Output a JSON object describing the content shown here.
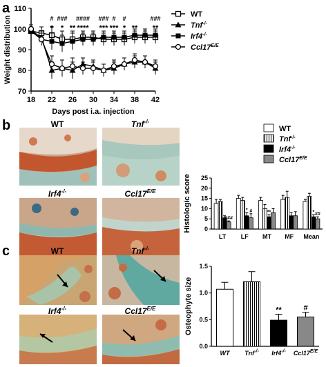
{
  "panels": {
    "a": "a",
    "b": "b",
    "c": "c"
  },
  "micrographs_b": [
    {
      "label": "WT",
      "sup": ""
    },
    {
      "label": "Tnf",
      "sup": "-/-"
    },
    {
      "label": "Irf4",
      "sup": "-/-"
    },
    {
      "label": "Ccl17",
      "sup": "E/E"
    }
  ],
  "micrographs_c": [
    {
      "label": "WT",
      "sup": ""
    },
    {
      "label": "Tnf",
      "sup": "-/-"
    },
    {
      "label": "Irf4",
      "sup": "-/-"
    },
    {
      "label": "Ccl17",
      "sup": "E/E"
    }
  ],
  "colors": {
    "white": "#ffffff",
    "black": "#000000",
    "grey": "#888888"
  },
  "chart_data": [
    {
      "type": "line",
      "id": "a",
      "xlabel": "Days post i.a. injection",
      "ylabel": "Weight distribution",
      "xlim": [
        18,
        42
      ],
      "ylim": [
        70,
        110
      ],
      "xticks": [
        "18",
        "22",
        "26",
        "30",
        "34",
        "38",
        "42"
      ],
      "yticks": [
        "70",
        "80",
        "90",
        "100",
        "110"
      ],
      "x": [
        18,
        20,
        22,
        24,
        26,
        28,
        30,
        32,
        34,
        36,
        38,
        40,
        42
      ],
      "series": [
        {
          "name": "WT",
          "marker": "open-square",
          "values": [
            99,
            98,
            97,
            95,
            95,
            96,
            96,
            95,
            95,
            95,
            96,
            96,
            96
          ]
        },
        {
          "name": "Tnf",
          "sup": "-/-",
          "marker": "filled-triangle",
          "values": [
            99,
            96,
            80,
            81,
            80,
            83,
            82,
            80,
            81,
            83,
            84,
            84,
            81
          ]
        },
        {
          "name": "Irf4",
          "sup": "-/-",
          "marker": "filled-square",
          "values": [
            99,
            95,
            94,
            93,
            94,
            95,
            95,
            96,
            96,
            96,
            97,
            97,
            97
          ]
        },
        {
          "name": "Ccl17",
          "sup": "E/E",
          "marker": "open-circle",
          "values": [
            100,
            95,
            83,
            81,
            82,
            81,
            81,
            80,
            82,
            83,
            85,
            84,
            82
          ]
        }
      ],
      "errors": [
        2,
        3,
        4,
        4,
        4,
        3,
        3,
        3,
        3,
        3,
        3,
        3,
        3
      ],
      "annotations_top": [
        {
          "x": 22,
          "text": "#"
        },
        {
          "x": 24,
          "text": "###"
        },
        {
          "x": 28,
          "text": "####"
        },
        {
          "x": 32,
          "text": "###"
        },
        {
          "x": 34,
          "text": "#"
        },
        {
          "x": 36,
          "text": "#"
        },
        {
          "x": 42,
          "text": "###"
        }
      ],
      "annotations_bottom": [
        {
          "x": 22,
          "text": "*"
        },
        {
          "x": 24,
          "text": "*"
        },
        {
          "x": 26,
          "text": "**"
        },
        {
          "x": 28,
          "text": "****"
        },
        {
          "x": 32,
          "text": "***"
        },
        {
          "x": 34,
          "text": "***"
        },
        {
          "x": 36,
          "text": "*"
        },
        {
          "x": 38,
          "text": "**"
        },
        {
          "x": 42,
          "text": "**"
        }
      ]
    },
    {
      "type": "bar",
      "id": "b",
      "ylabel": "Histologic score",
      "ylim": [
        0,
        25
      ],
      "yticks": [
        "0",
        "5",
        "10",
        "15",
        "20",
        "25"
      ],
      "categories": [
        "LT",
        "LF",
        "MT",
        "MF",
        "Mean"
      ],
      "series": [
        {
          "name": "WT",
          "style": "white",
          "values": [
            12.5,
            15,
            14,
            14.5,
            13.5
          ],
          "errors": [
            2,
            1.5,
            1.5,
            2,
            1
          ]
        },
        {
          "name": "Tnf",
          "sup": "-/-",
          "style": "stripes",
          "values": [
            13.5,
            14,
            10,
            15.5,
            16
          ],
          "errors": [
            1,
            1.5,
            2,
            3,
            1.5
          ]
        },
        {
          "name": "Irf4",
          "sup": "-/-",
          "style": "black",
          "values": [
            5.5,
            6.5,
            6,
            6.5,
            6
          ],
          "errors": [
            1,
            1.5,
            1,
            1.5,
            1
          ]
        },
        {
          "name": "Ccl17",
          "sup": "E/E",
          "style": "grey",
          "values": [
            3.5,
            5.5,
            8,
            6.5,
            5
          ],
          "errors": [
            0.5,
            2,
            2,
            2,
            1
          ]
        }
      ],
      "bar_labels": [
        {
          "cat": 0,
          "series": 3,
          "text": "###"
        },
        {
          "cat": 1,
          "series": 2,
          "text": "*"
        },
        {
          "cat": 1,
          "series": 3,
          "text": "#"
        },
        {
          "cat": 2,
          "series": 2,
          "text": "**"
        },
        {
          "cat": 4,
          "series": 2,
          "text": "*"
        },
        {
          "cat": 4,
          "series": 3,
          "text": "##"
        }
      ]
    },
    {
      "type": "bar",
      "id": "c",
      "ylabel": "Osteophyte size",
      "ylim": [
        0,
        1.5
      ],
      "yticks": [
        "0.0",
        "0.5",
        "1.0",
        "1.5"
      ],
      "categories": [
        "WT",
        "Tnf",
        "Irf4",
        "Ccl17"
      ],
      "category_sups": [
        "",
        "-/-",
        "-/-",
        "E/E"
      ],
      "values": [
        1.07,
        1.21,
        0.49,
        0.55
      ],
      "errors": [
        0.13,
        0.19,
        0.11,
        0.09
      ],
      "styles": [
        "white",
        "stripes",
        "black",
        "grey"
      ],
      "bar_labels": [
        {
          "cat": 2,
          "text": "**"
        },
        {
          "cat": 3,
          "text": "#"
        }
      ]
    }
  ]
}
